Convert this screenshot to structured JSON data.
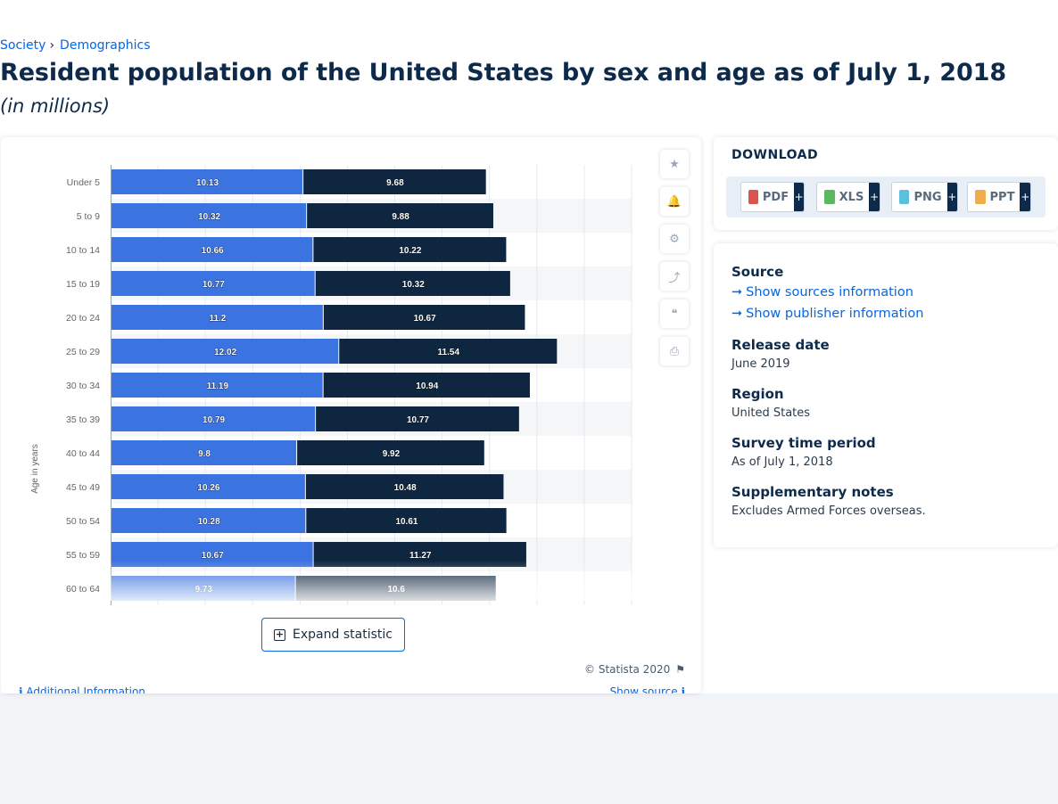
{
  "breadcrumb": {
    "item1": "Society",
    "item2": "Demographics",
    "sep": "›"
  },
  "page": {
    "title": "Resident population of the United States by sex and age as of July 1, 2018",
    "subtitle": "(in millions)"
  },
  "chart_data": {
    "type": "bar",
    "orientation": "horizontal",
    "stacked": true,
    "ylabel": "Age in years",
    "categories": [
      "Under 5",
      "5 to 9",
      "10 to 14",
      "15 to 19",
      "20 to 24",
      "25 to 29",
      "30 to 34",
      "35 to 39",
      "40 to 44",
      "45 to 49",
      "50 to 54",
      "55 to 59",
      "60 to 64"
    ],
    "series": [
      {
        "values": [
          10.13,
          10.32,
          10.66,
          10.77,
          11.2,
          12.02,
          11.19,
          10.79,
          9.8,
          10.26,
          10.28,
          10.67,
          9.73
        ],
        "color": "#3b73e0"
      },
      {
        "values": [
          9.68,
          9.88,
          10.22,
          10.32,
          10.67,
          11.54,
          10.94,
          10.77,
          9.92,
          10.48,
          10.61,
          11.27,
          10.6
        ],
        "color": "#0f2640"
      }
    ],
    "xlim": [
      0,
      27.5
    ],
    "grid": true,
    "legend": "none"
  },
  "tools": {
    "icons": [
      "star-icon",
      "bell-icon",
      "gear-icon",
      "share-icon",
      "quote-icon",
      "print-icon"
    ],
    "glyphs": [
      "★",
      "🔔",
      "⚙",
      "⤴",
      "❝",
      "⎙"
    ]
  },
  "expand": {
    "label": "Expand statistic",
    "plus": "+"
  },
  "footer": {
    "copyright": "© Statista 2020",
    "flag": "⚑",
    "additional": "Additional Information",
    "show_source": "Show source",
    "info_glyph": "ℹ"
  },
  "download": {
    "title": "DOWNLOAD",
    "buttons": [
      {
        "label": "PDF",
        "color": "#d9534f"
      },
      {
        "label": "XLS",
        "color": "#5cb85c"
      },
      {
        "label": "PNG",
        "color": "#5bc0de"
      },
      {
        "label": "PPT",
        "color": "#f0ad4e"
      }
    ],
    "plus": "+"
  },
  "info": {
    "source_h": "Source",
    "show_sources": "Show sources information",
    "show_publisher": "Show publisher information",
    "arrow": "➞",
    "release_h": "Release date",
    "release_v": "June 2019",
    "region_h": "Region",
    "region_v": "United States",
    "survey_h": "Survey time period",
    "survey_v": "As of July 1, 2018",
    "notes_h": "Supplementary notes",
    "notes_v": "Excludes Armed Forces overseas."
  }
}
